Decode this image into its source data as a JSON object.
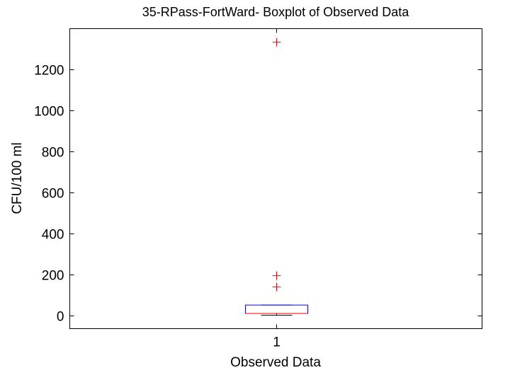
{
  "chart_data": {
    "type": "boxplot",
    "title": "35-RPass-FortWard- Boxplot of Observed Data",
    "xlabel": "Observed Data",
    "ylabel": "CFU/100 ml",
    "categories": [
      "1"
    ],
    "ylim": [
      -65,
      1397
    ],
    "yticks": [
      0,
      200,
      400,
      600,
      800,
      1000,
      1200
    ],
    "grid": false,
    "boxes": [
      {
        "category": "1",
        "lower_whisker": 0,
        "q1": 9,
        "median": 9,
        "q3": 50,
        "upper_whisker": 50,
        "outliers": [
          1331,
          193,
          138
        ]
      }
    ],
    "colors": {
      "box": "#0000ff",
      "median": "#ff0000",
      "whisker": "#000000",
      "outlier": "#ff0000"
    }
  }
}
